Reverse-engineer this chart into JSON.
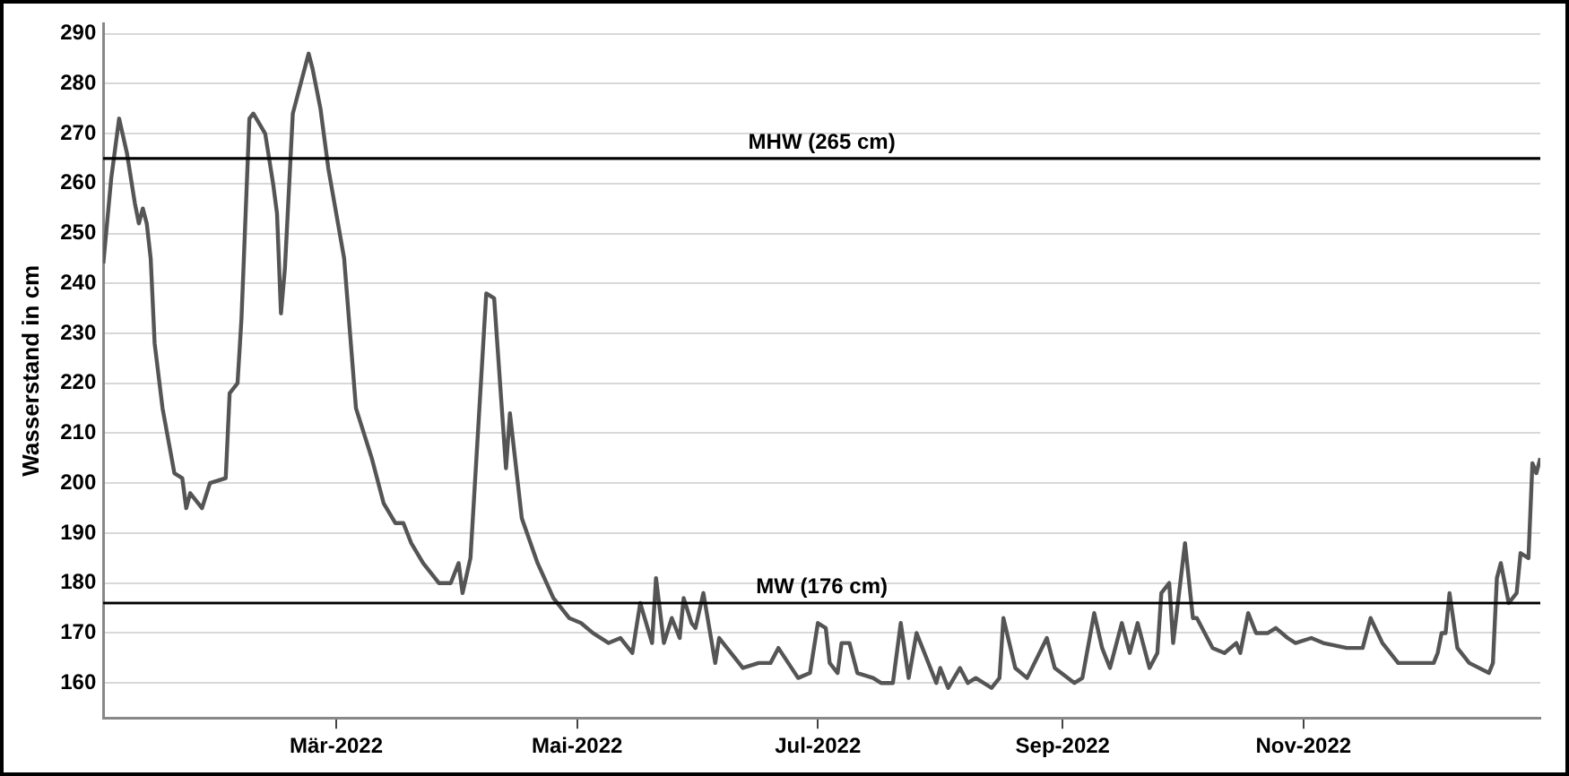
{
  "chart_data": {
    "type": "line",
    "ylabel": "Wasserstand in cm",
    "x": [
      "2022-01-01",
      "2022-01-03",
      "2022-01-05",
      "2022-01-07",
      "2022-01-09",
      "2022-01-10",
      "2022-01-11",
      "2022-01-12",
      "2022-01-13",
      "2022-01-14",
      "2022-01-16",
      "2022-01-19",
      "2022-01-21",
      "2022-01-22",
      "2022-01-23",
      "2022-01-26",
      "2022-01-28",
      "2022-02-01",
      "2022-02-02",
      "2022-02-04",
      "2022-02-05",
      "2022-02-07",
      "2022-02-08",
      "2022-02-11",
      "2022-02-13",
      "2022-02-14",
      "2022-02-15",
      "2022-02-16",
      "2022-02-18",
      "2022-02-20",
      "2022-02-22",
      "2022-02-23",
      "2022-02-25",
      "2022-02-27",
      "2022-03-03",
      "2022-03-06",
      "2022-03-10",
      "2022-03-13",
      "2022-03-16",
      "2022-03-18",
      "2022-03-20",
      "2022-03-23",
      "2022-03-27",
      "2022-03-30",
      "2022-04-01",
      "2022-04-02",
      "2022-04-04",
      "2022-04-08",
      "2022-04-10",
      "2022-04-13",
      "2022-04-14",
      "2022-04-16",
      "2022-04-17",
      "2022-04-21",
      "2022-04-25",
      "2022-04-29",
      "2022-05-02",
      "2022-05-05",
      "2022-05-09",
      "2022-05-12",
      "2022-05-15",
      "2022-05-17",
      "2022-05-20",
      "2022-05-21",
      "2022-05-23",
      "2022-05-25",
      "2022-05-27",
      "2022-05-28",
      "2022-05-30",
      "2022-05-31",
      "2022-06-02",
      "2022-06-05",
      "2022-06-06",
      "2022-06-12",
      "2022-06-16",
      "2022-06-19",
      "2022-06-21",
      "2022-06-26",
      "2022-06-29",
      "2022-07-01",
      "2022-07-03",
      "2022-07-04",
      "2022-07-06",
      "2022-07-07",
      "2022-07-09",
      "2022-07-11",
      "2022-07-15",
      "2022-07-17",
      "2022-07-20",
      "2022-07-22",
      "2022-07-24",
      "2022-07-26",
      "2022-07-31",
      "2022-08-01",
      "2022-08-03",
      "2022-08-06",
      "2022-08-08",
      "2022-08-10",
      "2022-08-14",
      "2022-08-16",
      "2022-08-17",
      "2022-08-20",
      "2022-08-23",
      "2022-08-28",
      "2022-08-30",
      "2022-09-04",
      "2022-09-06",
      "2022-09-09",
      "2022-09-11",
      "2022-09-13",
      "2022-09-16",
      "2022-09-18",
      "2022-09-20",
      "2022-09-23",
      "2022-09-25",
      "2022-09-26",
      "2022-09-28",
      "2022-09-29",
      "2022-10-02",
      "2022-10-04",
      "2022-10-05",
      "2022-10-09",
      "2022-10-12",
      "2022-10-15",
      "2022-10-16",
      "2022-10-18",
      "2022-10-20",
      "2022-10-23",
      "2022-10-25",
      "2022-10-28",
      "2022-10-30",
      "2022-11-03",
      "2022-11-06",
      "2022-11-12",
      "2022-11-16",
      "2022-11-18",
      "2022-11-21",
      "2022-11-25",
      "2022-12-04",
      "2022-12-05",
      "2022-12-06",
      "2022-12-07",
      "2022-12-08",
      "2022-12-10",
      "2022-12-13",
      "2022-12-18",
      "2022-12-19",
      "2022-12-20",
      "2022-12-21",
      "2022-12-23",
      "2022-12-25",
      "2022-12-26",
      "2022-12-28",
      "2022-12-29",
      "2022-12-30",
      "2022-12-31"
    ],
    "series": [
      {
        "color": "#555555",
        "values": [
          244,
          261,
          273,
          266,
          256,
          252,
          255,
          252,
          245,
          228,
          215,
          202,
          201,
          195,
          198,
          195,
          200,
          201,
          218,
          220,
          233,
          273,
          274,
          270,
          260,
          254,
          234,
          243,
          274,
          280,
          286,
          283,
          275,
          263,
          245,
          215,
          205,
          196,
          192,
          192,
          188,
          184,
          180,
          180,
          184,
          178,
          185,
          238,
          237,
          203,
          214,
          200,
          193,
          184,
          177,
          173,
          172,
          170,
          168,
          169,
          166,
          176,
          168,
          181,
          168,
          173,
          169,
          177,
          172,
          171,
          178,
          164,
          169,
          163,
          164,
          164,
          167,
          161,
          162,
          172,
          171,
          164,
          162,
          168,
          168,
          162,
          161,
          160,
          160,
          172,
          161,
          170,
          160,
          163,
          159,
          163,
          160,
          161,
          159,
          161,
          173,
          163,
          161,
          169,
          163,
          160,
          161,
          174,
          167,
          163,
          172,
          166,
          172,
          163,
          166,
          178,
          180,
          168,
          188,
          173,
          173,
          167,
          166,
          168,
          166,
          174,
          170,
          170,
          171,
          169,
          168,
          169,
          168,
          167,
          167,
          173,
          168,
          164,
          164,
          166,
          170,
          170,
          178,
          167,
          164,
          162,
          164,
          181,
          184,
          176,
          178,
          186,
          185,
          204,
          202,
          205
        ]
      }
    ],
    "xlim": [
      "2022-01-01",
      "2022-12-31"
    ],
    "xticks": [
      {
        "value": "2022-03-01",
        "label": "Mär-2022"
      },
      {
        "value": "2022-05-01",
        "label": "Mai-2022"
      },
      {
        "value": "2022-07-01",
        "label": "Jul-2022"
      },
      {
        "value": "2022-09-01",
        "label": "Sep-2022"
      },
      {
        "value": "2022-11-01",
        "label": "Nov-2022"
      }
    ],
    "ylim": [
      153,
      292
    ],
    "yticks": [
      160,
      170,
      180,
      190,
      200,
      210,
      220,
      230,
      240,
      250,
      260,
      270,
      280,
      290
    ],
    "ref_lines": [
      {
        "axis": "y",
        "value": 265,
        "label": "MHW (265 cm)",
        "color": "#000000"
      },
      {
        "axis": "y",
        "value": 176,
        "label": "MW (176 cm)",
        "color": "#000000"
      }
    ],
    "grid": "y",
    "legend": false,
    "marker": "none",
    "line_style": "solid"
  }
}
